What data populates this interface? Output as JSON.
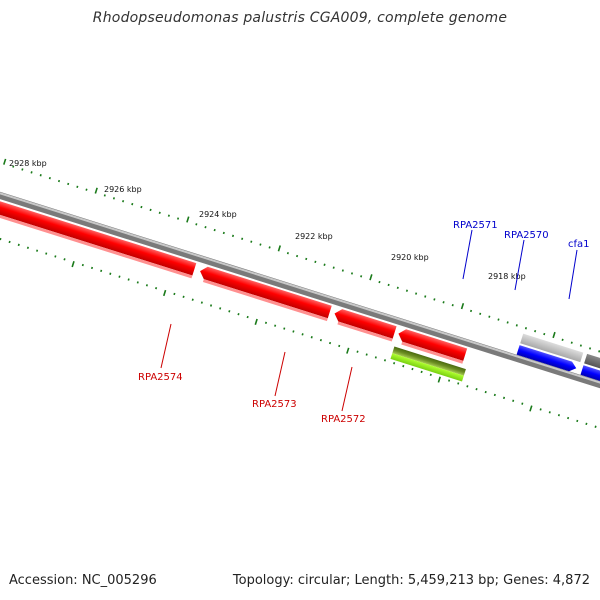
{
  "title": "Rhodopseudomonas palustris CGA009, complete genome",
  "footer": {
    "accession": "Accession: NC_005296",
    "summary": "Topology: circular; Length: 5,459,213 bp; Genes: 4,872"
  },
  "colors": {
    "backbone": "#8a8a8a",
    "tick": "#1a7a1a",
    "minus_gene": "#ff1a1a",
    "plus_gene": "#1010ff",
    "minus_label": "#cc0000",
    "plus_label": "#0000cc"
  },
  "scale": {
    "unit": "kbp",
    "ticks": [
      "2928 kbp",
      "2926 kbp",
      "2924 kbp",
      "2922 kbp",
      "2920 kbp",
      "2918 kbp"
    ]
  },
  "genes": [
    {
      "name": "RPA2574",
      "strand": "minus"
    },
    {
      "name": "RPA2573",
      "strand": "minus"
    },
    {
      "name": "RPA2572",
      "strand": "minus"
    },
    {
      "name": "RPA2571",
      "strand": "plus"
    },
    {
      "name": "RPA2570",
      "strand": "plus"
    },
    {
      "name": "cfa1",
      "strand": "plus"
    }
  ]
}
